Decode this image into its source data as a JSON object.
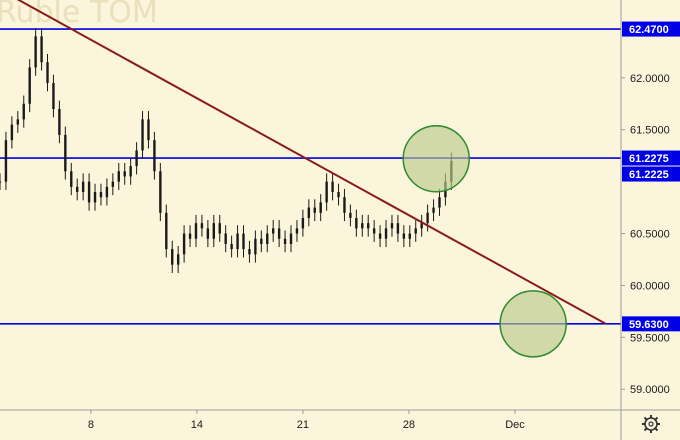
{
  "chart_data": {
    "type": "candlestick",
    "watermark": "Ruble TOM",
    "x_ticks": [
      "8",
      "14",
      "21",
      "28",
      "Dec"
    ],
    "y_ticks": [
      "62.0000",
      "61.5000",
      "60.5000",
      "60.0000",
      "59.5000",
      "59.0000"
    ],
    "ylim": [
      58.8,
      62.75
    ],
    "horizontal_levels": [
      {
        "label": "62.4700",
        "value": 62.47
      },
      {
        "label": "61.2275",
        "value": 61.2275
      },
      {
        "label": "59.6300",
        "value": 59.63
      }
    ],
    "current_price": {
      "label": "61.2225",
      "value": 61.2225
    },
    "trendline": {
      "from": {
        "day": 0.0,
        "value": 62.85
      },
      "to": {
        "day": 40.0,
        "value": 59.63
      }
    },
    "highlight_circles": [
      {
        "day": 28.8,
        "value": 61.22
      },
      {
        "day": 35.2,
        "value": 59.63
      }
    ],
    "x_range_days": [
      0,
      41
    ],
    "x_tick_days": [
      6,
      13,
      20,
      27,
      34
    ],
    "close_series_days_start": 0,
    "close_series": [
      61.0,
      61.4,
      61.55,
      61.6,
      61.75,
      62.1,
      62.4,
      62.15,
      61.95,
      61.7,
      61.45,
      61.1,
      60.95,
      60.9,
      61.0,
      60.8,
      60.9,
      60.85,
      60.95,
      61.0,
      61.1,
      61.05,
      61.15,
      61.3,
      61.6,
      61.4,
      61.1,
      60.7,
      60.35,
      60.2,
      60.3,
      60.5,
      60.45,
      60.6,
      60.55,
      60.45,
      60.6,
      60.5,
      60.4,
      60.35,
      60.5,
      60.35,
      60.3,
      60.45,
      60.4,
      60.5,
      60.55,
      60.45,
      60.4,
      60.5,
      60.55,
      60.65,
      60.75,
      60.7,
      60.8,
      61.0,
      60.9,
      60.85,
      60.7,
      60.65,
      60.55,
      60.6,
      60.55,
      60.5,
      60.45,
      60.55,
      60.6,
      60.5,
      60.45,
      60.5,
      60.55,
      60.6,
      60.7,
      60.75,
      60.85,
      61.0,
      61.2
    ]
  },
  "settings": {
    "gear_label": "settings"
  },
  "colors": {
    "background": "#fbf5dc",
    "level_line": "#0000e6",
    "trendline": "#8b1a1a",
    "circle_fill": "#b8c98a",
    "circle_stroke": "#2e8b2e",
    "candle": "#1a1a1a"
  }
}
